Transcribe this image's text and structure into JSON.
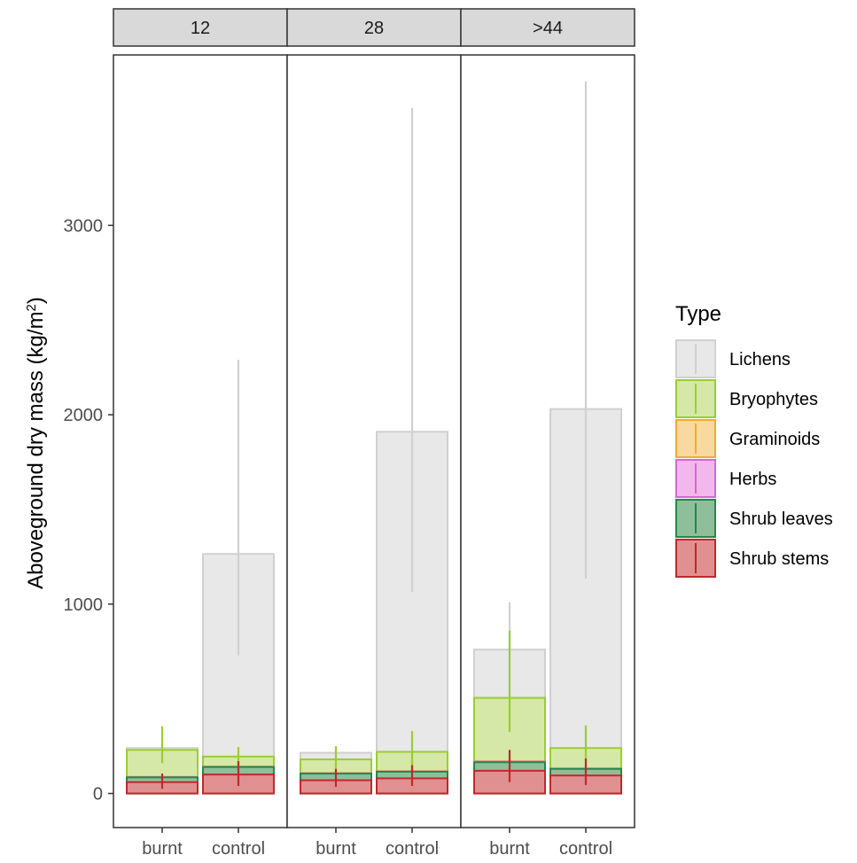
{
  "chart_data": {
    "type": "bar",
    "ylabel": "Aboveground dry mass (kg/m",
    "ylabel_superscript": "2",
    "ylabel_close": ")",
    "ylim": [
      -180,
      3900
    ],
    "yticks": [
      0,
      1000,
      2000,
      3000
    ],
    "categories": [
      "burnt",
      "control"
    ],
    "panels": [
      {
        "label": "12",
        "bars": {
          "burnt": {
            "Lichens": {
              "value": 240,
              "lo": null,
              "hi": null
            },
            "Bryophytes": {
              "value": 230,
              "lo": 160,
              "hi": 355
            },
            "Graminoids": {
              "value": 88,
              "lo": null,
              "hi": null
            },
            "Herbs": {
              "value": 86,
              "lo": null,
              "hi": null
            },
            "Shrub leaves": {
              "value": 85,
              "lo": null,
              "hi": null
            },
            "Shrub stems": {
              "value": 60,
              "lo": 25,
              "hi": 105
            }
          },
          "control": {
            "Lichens": {
              "value": 1265,
              "lo": 730,
              "hi": 2290
            },
            "Bryophytes": {
              "value": 195,
              "lo": 120,
              "hi": 245
            },
            "Graminoids": {
              "value": 142,
              "lo": null,
              "hi": null
            },
            "Herbs": {
              "value": 140,
              "lo": null,
              "hi": null
            },
            "Shrub leaves": {
              "value": 140,
              "lo": null,
              "hi": null
            },
            "Shrub stems": {
              "value": 100,
              "lo": 40,
              "hi": 170
            }
          }
        }
      },
      {
        "label": "28",
        "bars": {
          "burnt": {
            "Lichens": {
              "value": 215,
              "lo": null,
              "hi": null
            },
            "Bryophytes": {
              "value": 180,
              "lo": 110,
              "hi": 250
            },
            "Graminoids": {
              "value": 108,
              "lo": null,
              "hi": null
            },
            "Herbs": {
              "value": 106,
              "lo": null,
              "hi": null
            },
            "Shrub leaves": {
              "value": 105,
              "lo": null,
              "hi": null
            },
            "Shrub stems": {
              "value": 70,
              "lo": 35,
              "hi": 130
            }
          },
          "control": {
            "Lichens": {
              "value": 1910,
              "lo": 1065,
              "hi": 3620
            },
            "Bryophytes": {
              "value": 220,
              "lo": 120,
              "hi": 330
            },
            "Graminoids": {
              "value": 118,
              "lo": null,
              "hi": null
            },
            "Herbs": {
              "value": 116,
              "lo": null,
              "hi": null
            },
            "Shrub leaves": {
              "value": 115,
              "lo": null,
              "hi": null
            },
            "Shrub stems": {
              "value": 80,
              "lo": 40,
              "hi": 150
            }
          }
        }
      },
      {
        "label": ">44",
        "bars": {
          "burnt": {
            "Lichens": {
              "value": 760,
              "lo": null,
              "hi": 1010
            },
            "Bryophytes": {
              "value": 505,
              "lo": 325,
              "hi": 860
            },
            "Graminoids": {
              "value": 170,
              "lo": null,
              "hi": null
            },
            "Herbs": {
              "value": 168,
              "lo": null,
              "hi": null
            },
            "Shrub leaves": {
              "value": 165,
              "lo": null,
              "hi": null
            },
            "Shrub stems": {
              "value": 120,
              "lo": 60,
              "hi": 230
            }
          },
          "control": {
            "Lichens": {
              "value": 2030,
              "lo": 1135,
              "hi": 3760
            },
            "Bryophytes": {
              "value": 240,
              "lo": 145,
              "hi": 360
            },
            "Graminoids": {
              "value": 132,
              "lo": null,
              "hi": null
            },
            "Herbs": {
              "value": 131,
              "lo": null,
              "hi": null
            },
            "Shrub leaves": {
              "value": 130,
              "lo": null,
              "hi": null
            },
            "Shrub stems": {
              "value": 95,
              "lo": 45,
              "hi": 185
            }
          }
        }
      }
    ],
    "legend": {
      "title": "Type",
      "placement": "right",
      "items": [
        {
          "name": "Lichens",
          "fill": "#e8e8e8",
          "stroke": "#d0d0d0"
        },
        {
          "name": "Bryophytes",
          "fill": "#d5e8a8",
          "stroke": "#9acd32"
        },
        {
          "name": "Graminoids",
          "fill": "#f8d9a0",
          "stroke": "#f2ab2a"
        },
        {
          "name": "Herbs",
          "fill": "#f2b8ec",
          "stroke": "#d468d0"
        },
        {
          "name": "Shrub leaves",
          "fill": "#8fbf9a",
          "stroke": "#1f8a4a"
        },
        {
          "name": "Shrub stems",
          "fill": "#e09090",
          "stroke": "#c0282c"
        }
      ]
    },
    "grid": false
  }
}
